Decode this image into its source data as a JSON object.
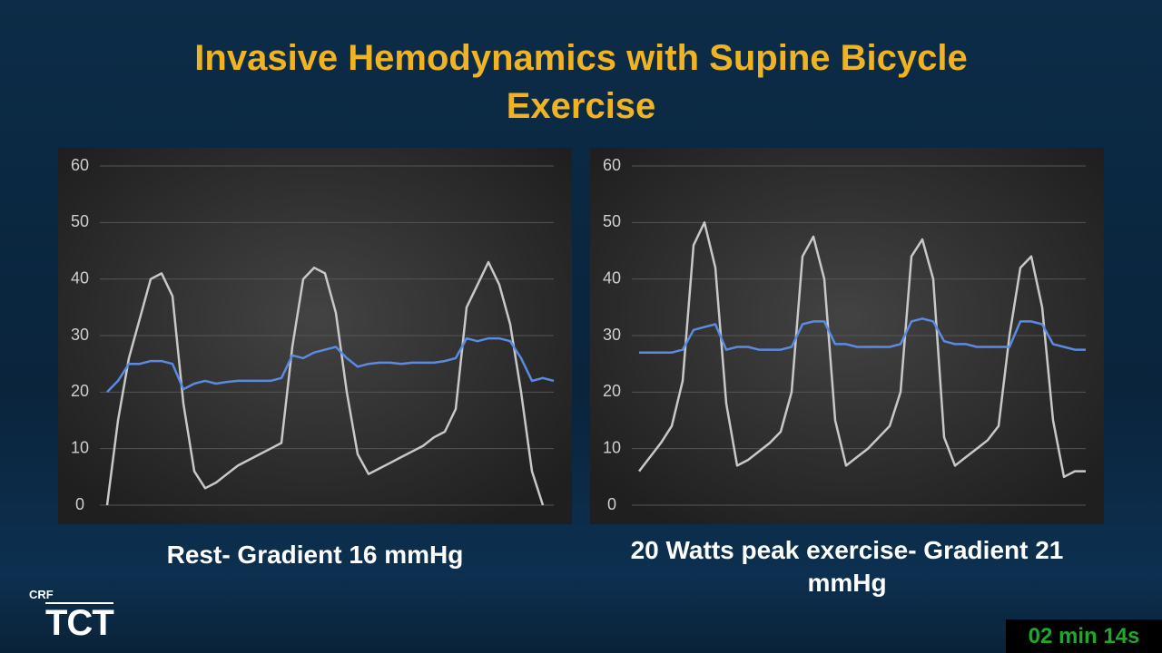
{
  "slide": {
    "title": "Invasive Hemodynamics with Supine Bicycle Exercise"
  },
  "chart_data": [
    {
      "type": "line",
      "title": "Rest- Gradient 16 mmHg",
      "categories": [
        null,
        null,
        null,
        null,
        null,
        null,
        null,
        null,
        null,
        null,
        null,
        null,
        null,
        null,
        null,
        null,
        null,
        null,
        null,
        null,
        null,
        null,
        null,
        null,
        null,
        null,
        null,
        null,
        null,
        null,
        null,
        null,
        null,
        null,
        null,
        null,
        null,
        null,
        null,
        null,
        null,
        null
      ],
      "series": [
        {
          "color": "#c8c8c8",
          "values": [
            0,
            15,
            26,
            33,
            40,
            41,
            37,
            18,
            6,
            3,
            4,
            5.5,
            7,
            8,
            9,
            10,
            11,
            28,
            40,
            42,
            41,
            34,
            20,
            9,
            5.5,
            6.5,
            7.5,
            8.5,
            9.5,
            10.5,
            12,
            13,
            17,
            35,
            39,
            43,
            39,
            32,
            20,
            6,
            0,
            null
          ]
        },
        {
          "color": "#5b8be0",
          "values": [
            20,
            22,
            25,
            25,
            25.5,
            25.5,
            25,
            20.5,
            21.5,
            22,
            21.5,
            21.8,
            22,
            22,
            22,
            22,
            22.5,
            26.5,
            26,
            27,
            27.5,
            28,
            26,
            24.5,
            25,
            25.2,
            25.2,
            25,
            25.2,
            25.2,
            25.2,
            25.5,
            26,
            29.5,
            29,
            29.5,
            29.5,
            29,
            26,
            22,
            22.5,
            22
          ]
        }
      ],
      "ylim": [
        0,
        60
      ],
      "yticks": [
        0,
        10,
        20,
        30,
        40,
        50,
        60
      ],
      "grid": true
    },
    {
      "type": "line",
      "title": "20 Watts peak exercise- Gradient 21 mmHg",
      "categories": [
        null,
        null,
        null,
        null,
        null,
        null,
        null,
        null,
        null,
        null,
        null,
        null,
        null,
        null,
        null,
        null,
        null,
        null,
        null,
        null,
        null,
        null,
        null,
        null,
        null,
        null,
        null,
        null,
        null,
        null,
        null,
        null,
        null,
        null,
        null,
        null,
        null,
        null,
        null,
        null,
        null,
        null
      ],
      "series": [
        {
          "color": "#c8c8c8",
          "values": [
            6,
            8.5,
            11,
            14,
            22,
            46,
            50,
            42,
            18,
            7,
            8,
            9.5,
            11,
            13,
            20,
            44,
            47.5,
            40,
            15,
            7,
            8.5,
            10,
            12,
            14,
            20,
            44,
            47,
            40,
            12,
            7,
            8.5,
            10,
            11.5,
            14,
            30,
            42,
            44,
            35,
            15,
            5,
            6,
            6
          ]
        },
        {
          "color": "#5b8be0",
          "values": [
            27,
            27,
            27,
            27,
            27.5,
            31,
            31.5,
            32,
            27.5,
            28,
            28,
            27.5,
            27.5,
            27.5,
            28,
            32,
            32.5,
            32.5,
            28.5,
            28.5,
            28,
            28,
            28,
            28,
            28.5,
            32.5,
            33,
            32.5,
            29,
            28.5,
            28.5,
            28,
            28,
            28,
            28,
            32.5,
            32.5,
            32,
            28.5,
            28,
            27.5,
            27.5
          ]
        }
      ],
      "ylim": [
        0,
        60
      ],
      "yticks": [
        0,
        10,
        20,
        30,
        40,
        50,
        60
      ],
      "grid": true
    }
  ],
  "logo": {
    "brand": "CRF",
    "name": "TCT"
  },
  "timer": "02 min 14s"
}
